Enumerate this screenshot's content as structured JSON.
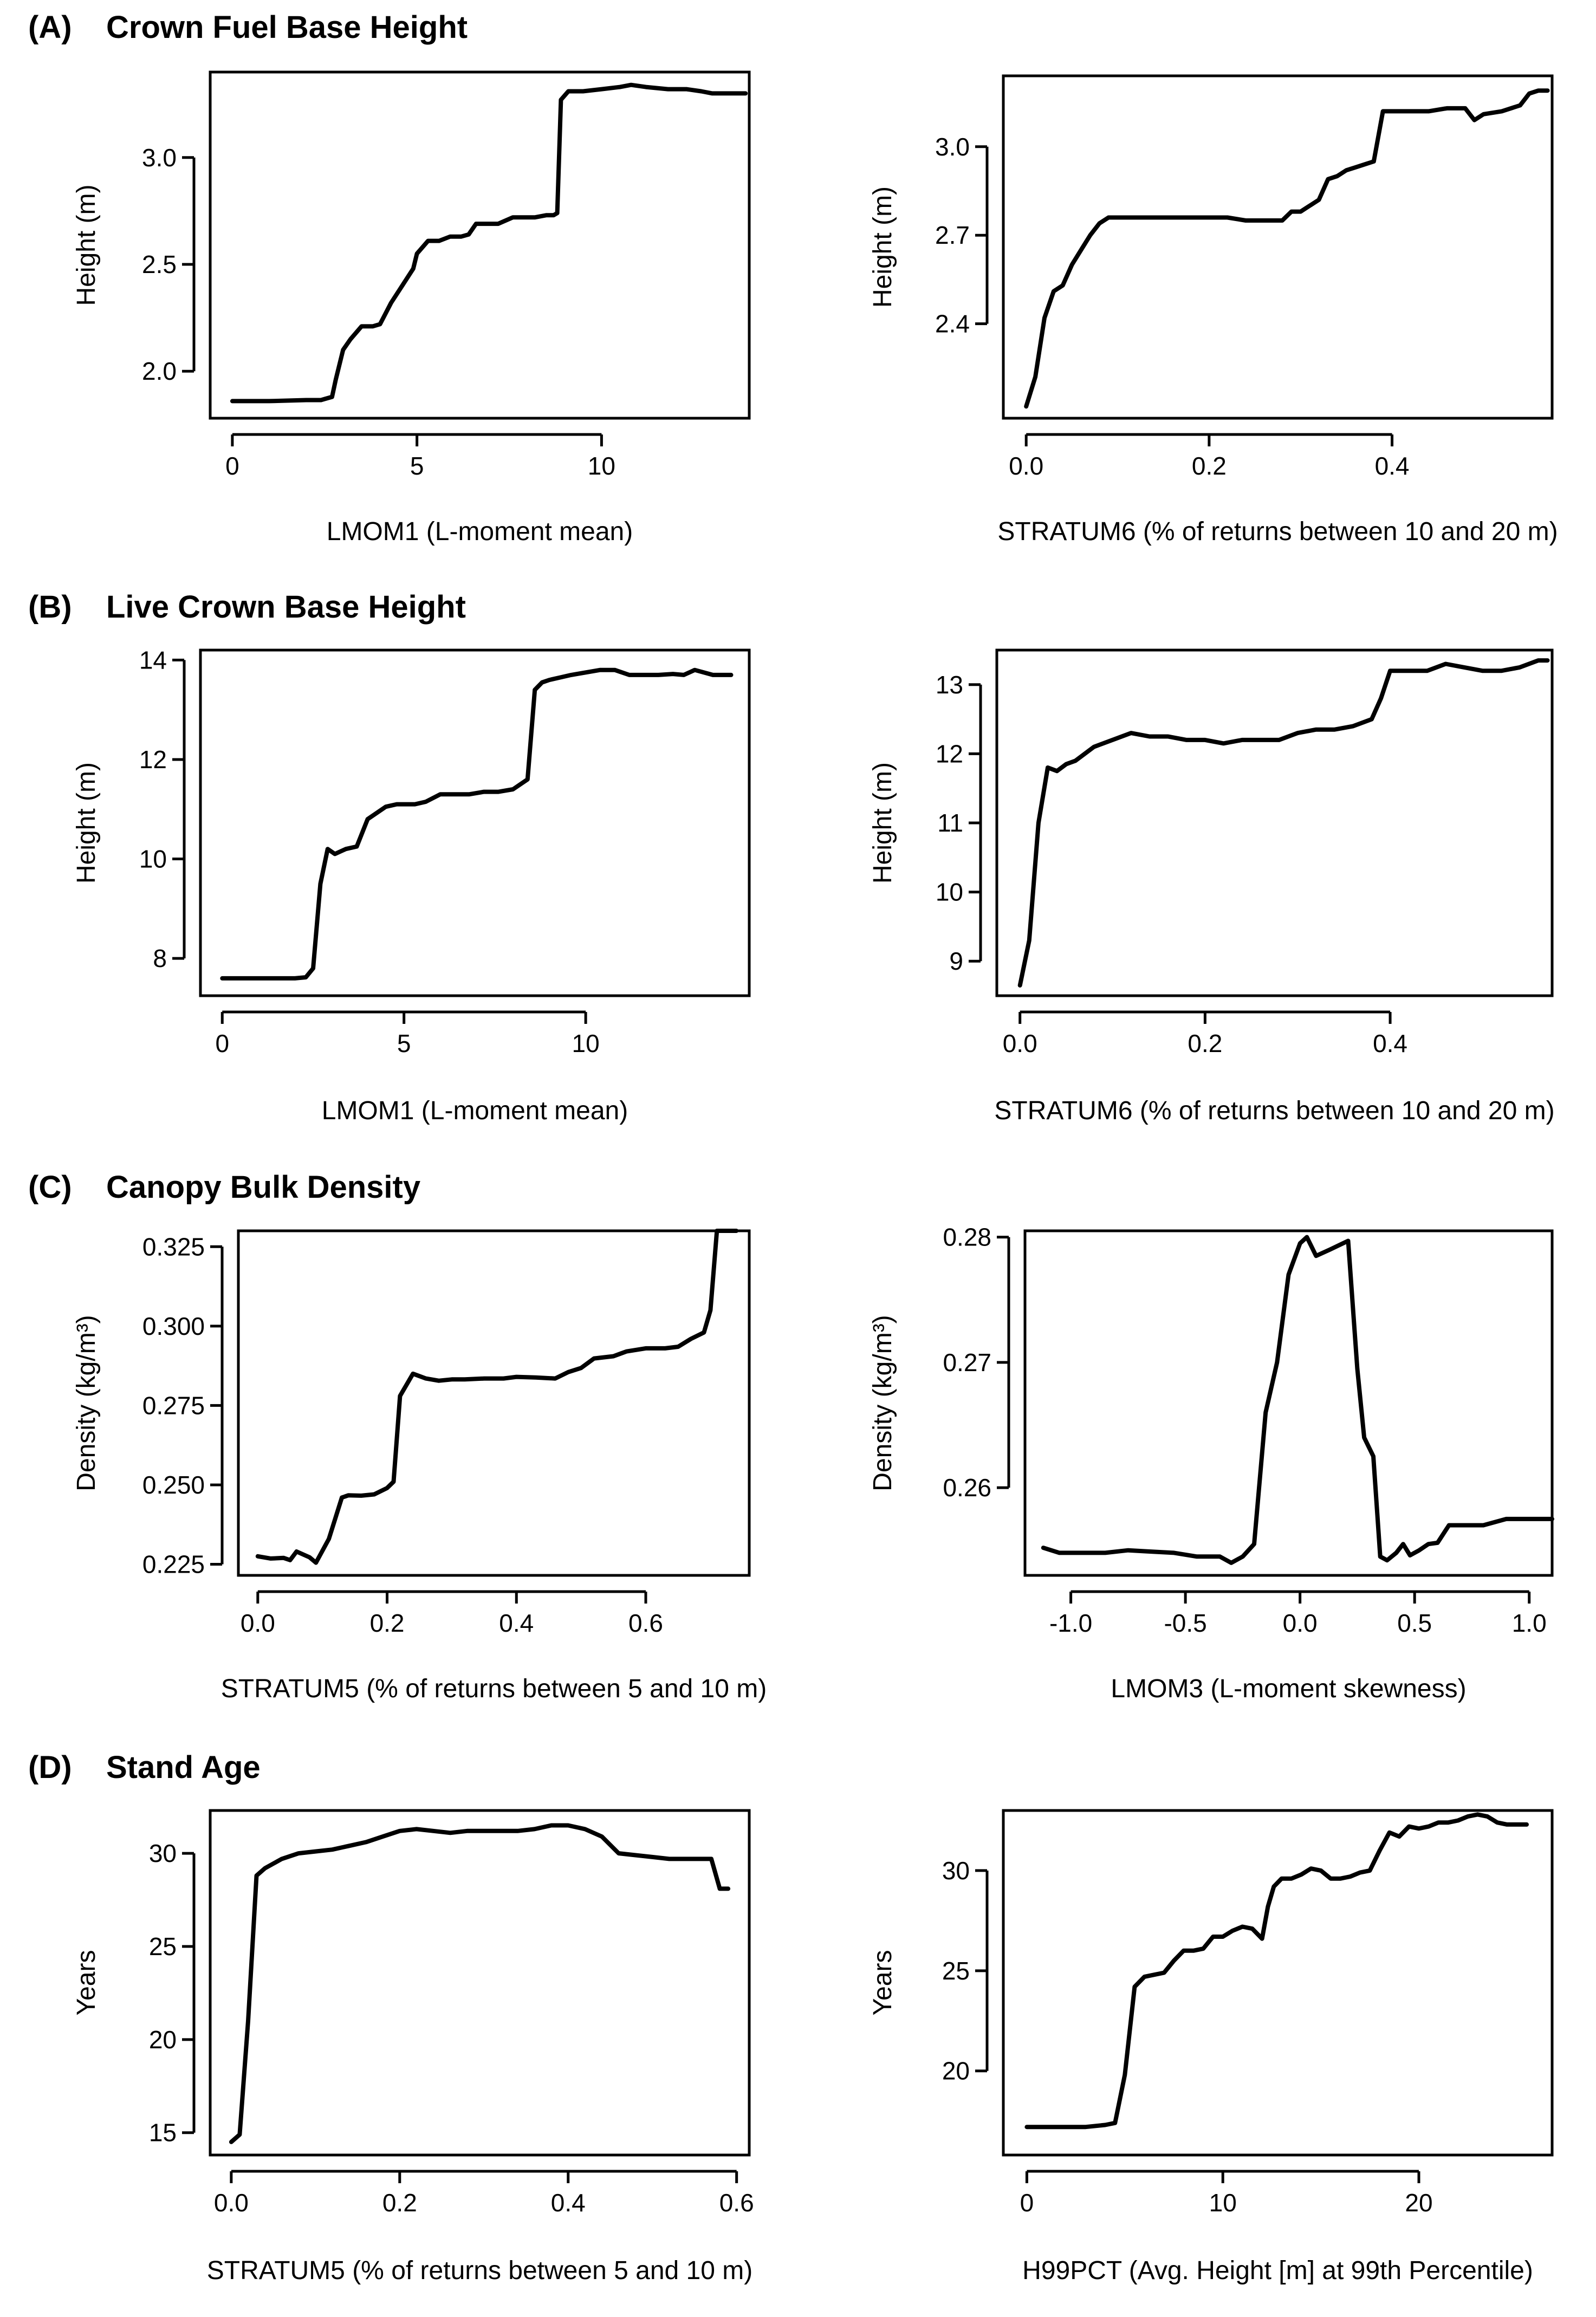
{
  "sections": [
    {
      "label": "(A)",
      "title": "Crown Fuel Base Height"
    },
    {
      "label": "(B)",
      "title": "Live Crown Base Height"
    },
    {
      "label": "(C)",
      "title": "Canopy Bulk Density"
    },
    {
      "label": "(D)",
      "title": "Stand Age"
    }
  ],
  "chart_data": [
    {
      "type": "line",
      "panel": "A-left",
      "xlabel": "LMOM1 (L-moment mean)",
      "ylabel": "Height (m)",
      "xlim": [
        -0.6,
        14.0
      ],
      "ylim": [
        1.78,
        3.4
      ],
      "xticks": [
        0,
        5,
        10
      ],
      "xtick_labels": [
        "0",
        "5",
        "10"
      ],
      "yticks": [
        2.0,
        2.5,
        3.0
      ],
      "ytick_labels": [
        "2.0",
        "2.5",
        "3.0"
      ],
      "x": [
        0.0,
        1.0,
        2.0,
        2.4,
        2.5,
        2.7,
        2.8,
        3.0,
        3.2,
        3.5,
        3.8,
        4.0,
        4.3,
        4.6,
        4.9,
        5.0,
        5.3,
        5.6,
        5.9,
        6.2,
        6.4,
        6.6,
        6.9,
        7.2,
        7.6,
        7.9,
        8.2,
        8.5,
        8.7,
        8.8,
        8.9,
        9.1,
        9.5,
        10.0,
        10.5,
        10.8,
        11.2,
        11.8,
        12.3,
        12.7,
        13.0,
        13.5,
        13.9
      ],
      "y": [
        1.86,
        1.86,
        1.865,
        1.865,
        1.87,
        1.88,
        1.96,
        2.1,
        2.15,
        2.21,
        2.21,
        2.22,
        2.32,
        2.4,
        2.48,
        2.55,
        2.61,
        2.61,
        2.63,
        2.63,
        2.64,
        2.69,
        2.69,
        2.69,
        2.72,
        2.72,
        2.72,
        2.73,
        2.73,
        2.74,
        3.27,
        3.31,
        3.31,
        3.32,
        3.33,
        3.34,
        3.33,
        3.32,
        3.32,
        3.31,
        3.3,
        3.3,
        3.3
      ]
    },
    {
      "type": "line",
      "panel": "A-right",
      "xlabel": "STRATUM6 (% of returns between 10 and 20 m)",
      "ylabel": "Height (m)",
      "xlim": [
        -0.025,
        0.575
      ],
      "ylim": [
        2.08,
        3.24
      ],
      "xticks": [
        0.0,
        0.2,
        0.4
      ],
      "xtick_labels": [
        "0.0",
        "0.2",
        "0.4"
      ],
      "yticks": [
        2.4,
        2.7,
        3.0
      ],
      "ytick_labels": [
        "2.4",
        "2.7",
        "3.0"
      ],
      "x": [
        0.0,
        0.01,
        0.02,
        0.03,
        0.04,
        0.05,
        0.06,
        0.07,
        0.08,
        0.09,
        0.1,
        0.12,
        0.14,
        0.16,
        0.18,
        0.2,
        0.22,
        0.24,
        0.26,
        0.28,
        0.29,
        0.3,
        0.31,
        0.32,
        0.33,
        0.34,
        0.35,
        0.36,
        0.37,
        0.38,
        0.39,
        0.4,
        0.42,
        0.44,
        0.46,
        0.48,
        0.49,
        0.5,
        0.52,
        0.54,
        0.55,
        0.56,
        0.57
      ],
      "y": [
        2.12,
        2.22,
        2.42,
        2.51,
        2.53,
        2.6,
        2.65,
        2.7,
        2.74,
        2.76,
        2.76,
        2.76,
        2.76,
        2.76,
        2.76,
        2.76,
        2.76,
        2.75,
        2.75,
        2.75,
        2.78,
        2.78,
        2.8,
        2.82,
        2.89,
        2.9,
        2.92,
        2.93,
        2.94,
        2.95,
        3.12,
        3.12,
        3.12,
        3.12,
        3.13,
        3.13,
        3.09,
        3.11,
        3.12,
        3.14,
        3.18,
        3.19,
        3.19
      ]
    },
    {
      "type": "line",
      "panel": "B-left",
      "xlabel": "LMOM1 (L-moment mean)",
      "ylabel": "Height (m)",
      "xlim": [
        -0.6,
        14.5
      ],
      "ylim": [
        7.25,
        14.2
      ],
      "xticks": [
        0,
        5,
        10
      ],
      "xtick_labels": [
        "0",
        "5",
        "10"
      ],
      "yticks": [
        8,
        10,
        12,
        14
      ],
      "ytick_labels": [
        "8",
        "10",
        "12",
        "14"
      ],
      "x": [
        0.0,
        1.0,
        2.0,
        2.3,
        2.5,
        2.7,
        2.9,
        3.1,
        3.4,
        3.7,
        4.0,
        4.2,
        4.5,
        4.8,
        5.0,
        5.3,
        5.6,
        6.0,
        6.4,
        6.8,
        7.2,
        7.6,
        8.0,
        8.4,
        8.6,
        8.8,
        9.0,
        9.3,
        9.6,
        10.0,
        10.4,
        10.8,
        11.2,
        11.6,
        12.0,
        12.4,
        12.7,
        13.0,
        13.5,
        14.0
      ],
      "y": [
        7.6,
        7.6,
        7.6,
        7.62,
        7.8,
        9.5,
        10.2,
        10.1,
        10.2,
        10.25,
        10.8,
        10.9,
        11.05,
        11.1,
        11.1,
        11.1,
        11.15,
        11.3,
        11.3,
        11.3,
        11.35,
        11.35,
        11.4,
        11.6,
        13.4,
        13.55,
        13.6,
        13.65,
        13.7,
        13.75,
        13.8,
        13.8,
        13.7,
        13.7,
        13.7,
        13.72,
        13.7,
        13.8,
        13.7,
        13.7
      ]
    },
    {
      "type": "line",
      "panel": "B-right",
      "xlabel": "STRATUM6 (% of returns between 10 and 20 m)",
      "ylabel": "Height (m)",
      "xlim": [
        -0.025,
        0.575
      ],
      "ylim": [
        8.5,
        13.5
      ],
      "xticks": [
        0.0,
        0.2,
        0.4
      ],
      "xtick_labels": [
        "0.0",
        "0.2",
        "0.4"
      ],
      "yticks": [
        9,
        10,
        11,
        12,
        13
      ],
      "ytick_labels": [
        "9",
        "10",
        "11",
        "12",
        "13"
      ],
      "x": [
        0.0,
        0.01,
        0.02,
        0.03,
        0.04,
        0.05,
        0.06,
        0.08,
        0.1,
        0.12,
        0.14,
        0.16,
        0.18,
        0.2,
        0.22,
        0.24,
        0.26,
        0.28,
        0.3,
        0.32,
        0.34,
        0.36,
        0.38,
        0.39,
        0.4,
        0.42,
        0.44,
        0.46,
        0.48,
        0.5,
        0.52,
        0.54,
        0.56,
        0.57
      ],
      "y": [
        8.65,
        9.3,
        11.0,
        11.8,
        11.75,
        11.85,
        11.9,
        12.1,
        12.2,
        12.3,
        12.25,
        12.25,
        12.2,
        12.2,
        12.15,
        12.2,
        12.2,
        12.2,
        12.3,
        12.35,
        12.35,
        12.4,
        12.5,
        12.8,
        13.2,
        13.2,
        13.2,
        13.3,
        13.25,
        13.2,
        13.2,
        13.25,
        13.35,
        13.35
      ]
    },
    {
      "type": "line",
      "panel": "C-left",
      "xlabel": "STRATUM5 (% of returns between 5 and 10 m)",
      "ylabel": "Density (kg/m³)",
      "xlim": [
        -0.03,
        0.76
      ],
      "ylim": [
        0.2215,
        0.33
      ],
      "xticks": [
        0.0,
        0.2,
        0.4,
        0.6
      ],
      "xtick_labels": [
        "0.0",
        "0.2",
        "0.4",
        "0.6"
      ],
      "yticks": [
        0.225,
        0.25,
        0.275,
        0.3,
        0.325
      ],
      "ytick_labels": [
        "0.225",
        "0.250",
        "0.275",
        "0.300",
        "0.325"
      ],
      "x": [
        0.0,
        0.02,
        0.04,
        0.05,
        0.06,
        0.08,
        0.09,
        0.11,
        0.13,
        0.14,
        0.16,
        0.18,
        0.2,
        0.21,
        0.22,
        0.24,
        0.26,
        0.28,
        0.3,
        0.32,
        0.35,
        0.38,
        0.4,
        0.43,
        0.46,
        0.48,
        0.5,
        0.52,
        0.55,
        0.57,
        0.6,
        0.63,
        0.65,
        0.67,
        0.69,
        0.7,
        0.71,
        0.72,
        0.74
      ],
      "y": [
        0.2275,
        0.2268,
        0.227,
        0.2263,
        0.229,
        0.2272,
        0.2255,
        0.233,
        0.246,
        0.2467,
        0.2466,
        0.247,
        0.249,
        0.251,
        0.278,
        0.285,
        0.2835,
        0.2828,
        0.2832,
        0.2832,
        0.2835,
        0.2835,
        0.284,
        0.2838,
        0.2835,
        0.2855,
        0.2868,
        0.2898,
        0.2905,
        0.292,
        0.293,
        0.293,
        0.2935,
        0.296,
        0.298,
        0.305,
        0.33,
        0.33,
        0.33
      ]
    },
    {
      "type": "line",
      "panel": "C-right",
      "xlabel": "LMOM3 (L-moment skewness)",
      "ylabel": "Density (kg/m³)",
      "xlim": [
        -1.2,
        1.1
      ],
      "ylim": [
        0.253,
        0.2805
      ],
      "xticks": [
        -1.0,
        -0.5,
        0.0,
        0.5,
        1.0
      ],
      "xtick_labels": [
        "-1.0",
        "-0.5",
        "0.0",
        "0.5",
        "1.0"
      ],
      "yticks": [
        0.26,
        0.27,
        0.28
      ],
      "ytick_labels": [
        "0.26",
        "0.27",
        "0.28"
      ],
      "x": [
        -1.12,
        -1.05,
        -0.95,
        -0.85,
        -0.75,
        -0.65,
        -0.55,
        -0.45,
        -0.35,
        -0.3,
        -0.25,
        -0.2,
        -0.15,
        -0.1,
        -0.05,
        0.0,
        0.03,
        0.07,
        0.13,
        0.21,
        0.25,
        0.28,
        0.32,
        0.35,
        0.38,
        0.42,
        0.45,
        0.48,
        0.52,
        0.56,
        0.6,
        0.65,
        0.7,
        0.8,
        0.9,
        1.0,
        1.1
      ],
      "y": [
        0.2552,
        0.2548,
        0.2548,
        0.2548,
        0.255,
        0.2549,
        0.2548,
        0.2545,
        0.2545,
        0.254,
        0.2545,
        0.2555,
        0.266,
        0.27,
        0.277,
        0.2795,
        0.28,
        0.2785,
        0.279,
        0.2797,
        0.2695,
        0.264,
        0.2625,
        0.2545,
        0.2542,
        0.2548,
        0.2555,
        0.2546,
        0.255,
        0.2555,
        0.2556,
        0.257,
        0.257,
        0.257,
        0.2575,
        0.2575,
        0.2575
      ]
    },
    {
      "type": "line",
      "panel": "D-left",
      "xlabel": "STRATUM5 (% of returns between 5 and 10 m)",
      "ylabel": "Years",
      "xlim": [
        -0.025,
        0.615
      ],
      "ylim": [
        13.8,
        32.3
      ],
      "xticks": [
        0.0,
        0.2,
        0.4,
        0.6
      ],
      "xtick_labels": [
        "0.0",
        "0.2",
        "0.4",
        "0.6"
      ],
      "yticks": [
        15,
        20,
        25,
        30
      ],
      "ytick_labels": [
        "15",
        "20",
        "25",
        "30"
      ],
      "x": [
        0.0,
        0.01,
        0.02,
        0.03,
        0.04,
        0.06,
        0.08,
        0.1,
        0.12,
        0.14,
        0.16,
        0.18,
        0.2,
        0.22,
        0.24,
        0.26,
        0.28,
        0.3,
        0.32,
        0.34,
        0.36,
        0.38,
        0.4,
        0.42,
        0.44,
        0.46,
        0.48,
        0.5,
        0.52,
        0.54,
        0.56,
        0.57,
        0.58,
        0.59
      ],
      "y": [
        14.5,
        14.9,
        21.0,
        28.8,
        29.2,
        29.7,
        30.0,
        30.1,
        30.2,
        30.4,
        30.6,
        30.9,
        31.2,
        31.3,
        31.2,
        31.1,
        31.2,
        31.2,
        31.2,
        31.2,
        31.3,
        31.5,
        31.5,
        31.3,
        30.9,
        30.0,
        29.9,
        29.8,
        29.7,
        29.7,
        29.7,
        29.7,
        28.1,
        28.1
      ]
    },
    {
      "type": "line",
      "panel": "D-right",
      "xlabel": "H99PCT (Avg. Height [m] at 99th Percentile)",
      "ylabel": "Years",
      "xlim": [
        -1.2,
        26.8
      ],
      "ylim": [
        15.8,
        33.0
      ],
      "xticks": [
        0,
        10,
        20
      ],
      "xtick_labels": [
        "0",
        "10",
        "20"
      ],
      "yticks": [
        20,
        25,
        30
      ],
      "ytick_labels": [
        "20",
        "25",
        "30"
      ],
      "x": [
        0.0,
        1.0,
        2.0,
        3.0,
        4.0,
        4.5,
        5.0,
        5.5,
        6.0,
        6.5,
        7.0,
        7.5,
        8.0,
        8.5,
        9.0,
        9.5,
        10.0,
        10.5,
        11.0,
        11.5,
        12.0,
        12.3,
        12.6,
        13.0,
        13.5,
        14.0,
        14.5,
        15.0,
        15.5,
        16.0,
        16.5,
        17.0,
        17.5,
        18.0,
        18.5,
        19.0,
        19.5,
        20.0,
        20.5,
        21.0,
        21.5,
        22.0,
        22.5,
        23.0,
        23.5,
        24.0,
        24.5,
        25.0,
        25.5
      ],
      "y": [
        17.2,
        17.2,
        17.2,
        17.2,
        17.3,
        17.4,
        19.8,
        24.2,
        24.7,
        24.8,
        24.9,
        25.5,
        26.0,
        26.0,
        26.1,
        26.7,
        26.7,
        27.0,
        27.2,
        27.1,
        26.6,
        28.2,
        29.2,
        29.6,
        29.6,
        29.8,
        30.1,
        30.0,
        29.6,
        29.6,
        29.7,
        29.9,
        30.0,
        31.0,
        31.9,
        31.7,
        32.2,
        32.1,
        32.2,
        32.4,
        32.4,
        32.5,
        32.7,
        32.8,
        32.7,
        32.4,
        32.3,
        32.3,
        32.3
      ]
    }
  ]
}
